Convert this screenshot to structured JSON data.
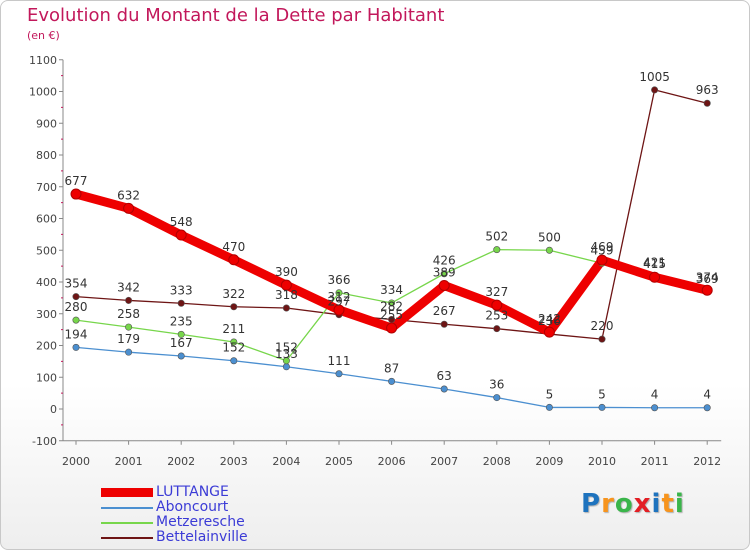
{
  "chart_data": {
    "type": "line",
    "title": "Evolution du Montant de la Dette par Habitant",
    "subtitle": "(en €)",
    "categories": [
      "2000",
      "2001",
      "2002",
      "2003",
      "2004",
      "2005",
      "2006",
      "2007",
      "2008",
      "2009",
      "2010",
      "2011",
      "2012"
    ],
    "ylim": [
      -100,
      1100
    ],
    "yticks": [
      "-100",
      "0",
      "100",
      "200",
      "300",
      "400",
      "500",
      "600",
      "700",
      "800",
      "900",
      "1000",
      "1100"
    ],
    "grid": false,
    "legend_position": "bottom-left",
    "series": [
      {
        "name": "LUTTANGE",
        "color": "#ee0000",
        "values": [
          677,
          632,
          548,
          470,
          390,
          312,
          255,
          389,
          327,
          242,
          469,
          415,
          374
        ],
        "labels": [
          "677",
          "632",
          "548",
          "470",
          "390",
          "312",
          "255",
          "389",
          "327",
          "242",
          "469",
          "415",
          "374"
        ]
      },
      {
        "name": "Aboncourt",
        "color": "#4b8fd0",
        "values": [
          194,
          179,
          167,
          152,
          133,
          111,
          87,
          63,
          36,
          5,
          5,
          4,
          4
        ],
        "labels": [
          "194",
          "179",
          "167",
          "152",
          "133",
          "111",
          "87",
          "63",
          "36",
          "5",
          "5",
          "4",
          "4"
        ]
      },
      {
        "name": "Metzeresche",
        "color": "#77d64b",
        "values": [
          280,
          258,
          235,
          211,
          152,
          366,
          334,
          426,
          502,
          500,
          459,
          421,
          369
        ],
        "labels": [
          "280",
          "258",
          "235",
          "211",
          "152",
          "366",
          "334",
          "426",
          "502",
          "500",
          "459",
          "421",
          "369"
        ]
      },
      {
        "name": "Bettelainville",
        "color": "#6e1515",
        "values": [
          354,
          342,
          333,
          322,
          318,
          297,
          282,
          267,
          253,
          236,
          220,
          1005,
          963
        ],
        "labels": [
          "354",
          "342",
          "333",
          "322",
          "318",
          "297",
          "282",
          "267",
          "253",
          "236",
          "220",
          "1005",
          "963"
        ]
      }
    ]
  },
  "brand": {
    "letters": [
      {
        "ch": "P",
        "color": "#1e73be"
      },
      {
        "ch": "r",
        "color": "#f7941d"
      },
      {
        "ch": "o",
        "color": "#3ab54a"
      },
      {
        "ch": "x",
        "color": "#e31e24"
      },
      {
        "ch": "i",
        "color": "#1e73be"
      },
      {
        "ch": "t",
        "color": "#f7941d"
      },
      {
        "ch": "i",
        "color": "#3ab54a"
      }
    ]
  }
}
